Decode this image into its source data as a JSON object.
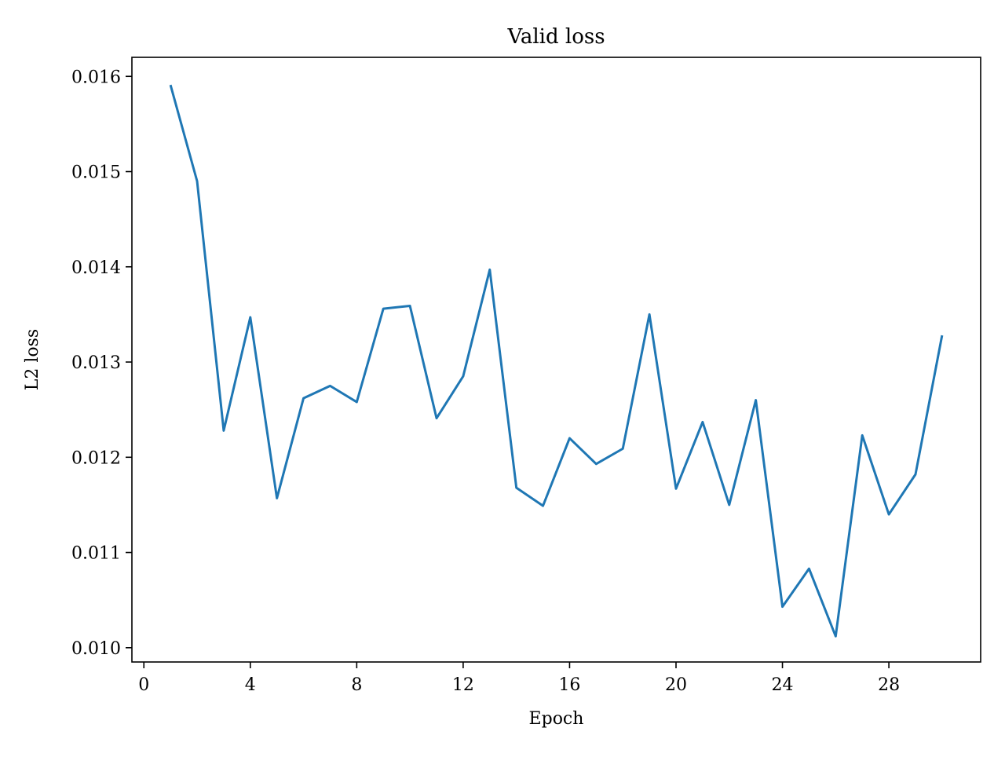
{
  "chart_data": {
    "type": "line",
    "title": "Valid loss",
    "xlabel": "Epoch",
    "ylabel": "L2 loss",
    "xlim": [
      -0.45,
      31.45
    ],
    "ylim": [
      0.00985,
      0.0162
    ],
    "xticks": [
      0,
      4,
      8,
      12,
      16,
      20,
      24,
      28
    ],
    "xtick_labels": [
      "0",
      "4",
      "8",
      "12",
      "16",
      "20",
      "24",
      "28"
    ],
    "yticks": [
      0.01,
      0.011,
      0.012,
      0.013,
      0.014,
      0.015,
      0.016
    ],
    "ytick_labels": [
      "0.010",
      "0.011",
      "0.012",
      "0.013",
      "0.014",
      "0.015",
      "0.016"
    ],
    "grid": false,
    "line_color": "#1f77b4",
    "series": [
      {
        "x": [
          1,
          2,
          3,
          4,
          5,
          6,
          7,
          8,
          9,
          10,
          11,
          12,
          13,
          14,
          15,
          16,
          17,
          18,
          19,
          20,
          21,
          22,
          23,
          24,
          25,
          26,
          27,
          28,
          29,
          30
        ],
        "values": [
          0.01591,
          0.0149,
          0.01228,
          0.01347,
          0.01157,
          0.01262,
          0.01275,
          0.01258,
          0.01356,
          0.01359,
          0.01241,
          0.01285,
          0.01397,
          0.01168,
          0.01149,
          0.0122,
          0.01193,
          0.01209,
          0.0135,
          0.01167,
          0.01237,
          0.0115,
          0.0126,
          0.01043,
          0.01083,
          0.01012,
          0.01223,
          0.0114,
          0.01182,
          0.01328
        ]
      }
    ]
  }
}
